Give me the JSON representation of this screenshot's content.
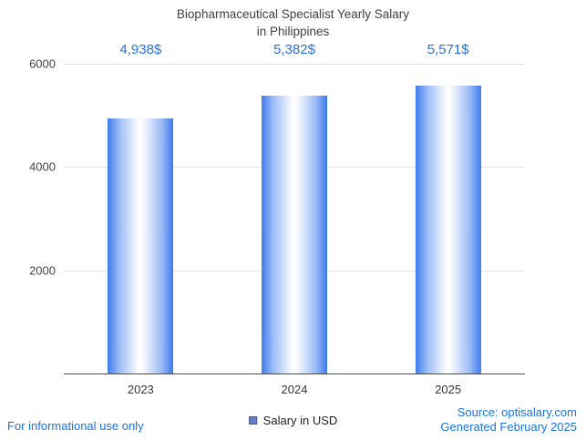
{
  "title": {
    "line1": "Biopharmaceutical Specialist Yearly Salary",
    "line2": "in Philippines"
  },
  "legend": {
    "label": "Salary in USD"
  },
  "footer": {
    "left": "For informational use only",
    "source": "Source: optisalary.com",
    "generated": "Generated February 2025"
  },
  "colors": {
    "bar_edge": "#3d7bed",
    "bar_mid": "#ffffff",
    "label_blue": "#2a6fdd",
    "footer_blue": "#1a73e8",
    "grid": "#e0e0e0",
    "axis": "#4d4d4d",
    "title": "#3f4045",
    "legend_swatch": "#667fc9"
  },
  "chart_data": {
    "type": "bar",
    "title": "Biopharmaceutical Specialist Yearly Salary in Philippines",
    "categories": [
      "2023",
      "2024",
      "2025"
    ],
    "values": [
      4938,
      5382,
      5571
    ],
    "value_labels": [
      "4,938$",
      "5,382$",
      "5,571$"
    ],
    "series": [
      {
        "name": "Salary in USD",
        "values": [
          4938,
          5382,
          5571
        ]
      }
    ],
    "xlabel": "",
    "ylabel": "",
    "ylim": [
      0,
      6000
    ],
    "yticks": [
      2000,
      4000,
      6000
    ],
    "grid": true,
    "legend_position": "bottom",
    "bar_style": "vertical-gradient-cylinder"
  }
}
